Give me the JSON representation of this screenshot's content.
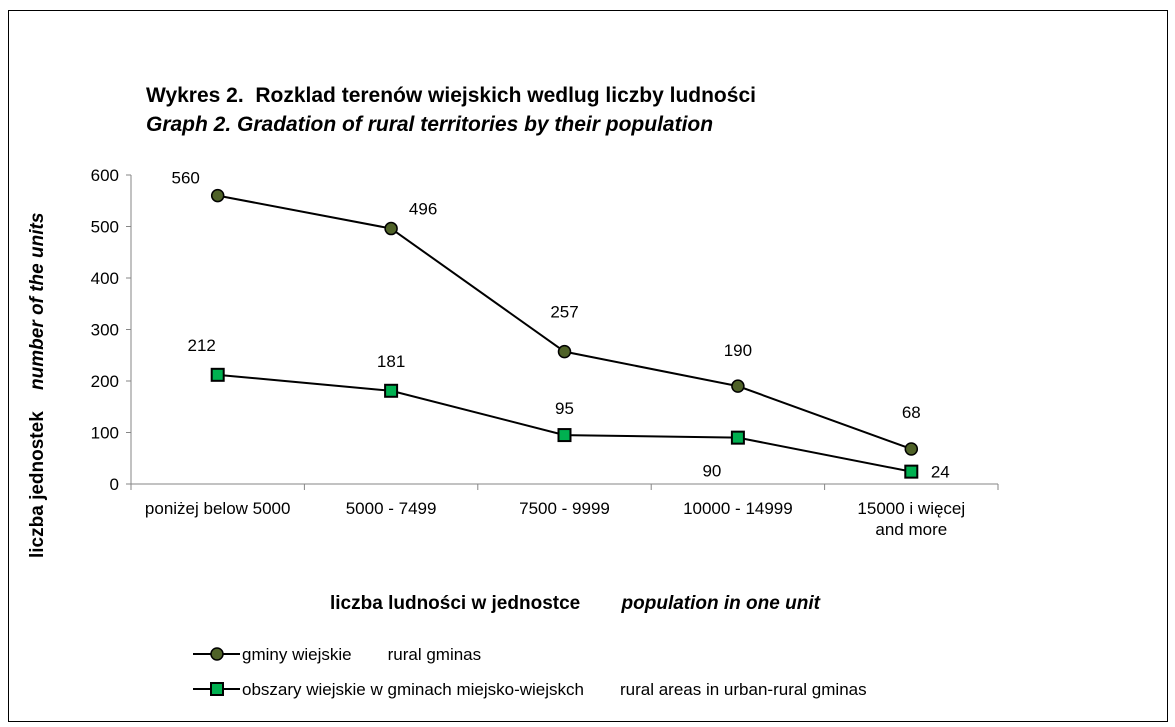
{
  "chart_data": {
    "type": "line",
    "title": "Wykres 2.  Rozklad terenów wiejskich wedlug liczby ludności",
    "subtitle": "Graph 2. Gradation of rural territories by their population",
    "xlabel_pl": "liczba ludności w jednostce",
    "xlabel_en": "population in one  unit",
    "ylabel_pl": "liczba jednostek",
    "ylabel_en": "number of the units",
    "categories": [
      [
        "poniżej below 5000"
      ],
      [
        "5000 - 7499"
      ],
      [
        "7500 - 9999"
      ],
      [
        "10000 - 14999"
      ],
      [
        "15000  i  więcej",
        "and more"
      ]
    ],
    "ylim": [
      0,
      600
    ],
    "yticks": [
      0,
      100,
      200,
      300,
      400,
      500,
      600
    ],
    "series": [
      {
        "name_pl": "gminy wiejskie",
        "name_en": "rural  gminas",
        "marker": "circle",
        "color": "#4f6228",
        "values": [
          560,
          496,
          257,
          190,
          68
        ]
      },
      {
        "name_pl": "obszary wiejskie w gminach miejsko-wiejskch",
        "name_en": "rural  areas  in urban-rural gminas",
        "marker": "square",
        "color": "#00b050",
        "values": [
          212,
          181,
          95,
          90,
          24
        ]
      }
    ]
  }
}
